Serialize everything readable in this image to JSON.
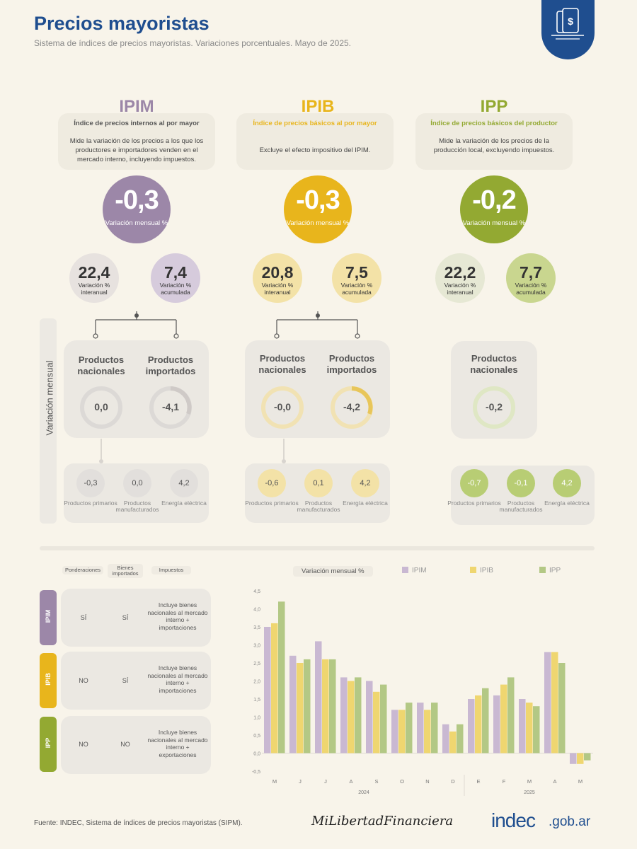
{
  "header": {
    "title": "Precios mayoristas",
    "subtitle": "Sistema de índices de precios mayoristas. Variaciones porcentuales. Mayo de 2025."
  },
  "colors": {
    "ipim": "#9c87a8",
    "ipib": "#e8b51c",
    "ipp": "#93a932",
    "brand_blue": "#1f4e8f"
  },
  "indices": [
    {
      "code": "IPIM",
      "full_name": "Índice de precios internos al por mayor",
      "description": "Mide la variación de los precios a los que los productores e importadores venden en el mercado interno, incluyendo impuestos.",
      "monthly": "-0,3",
      "monthly_label": "Variación mensual %",
      "interanual": "22,4",
      "interanual_label": "Variación % interanual",
      "acumulada": "7,4",
      "acumulada_label": "Variación % acumulada",
      "products": [
        {
          "label": "Productos nacionales",
          "value": "0,0"
        },
        {
          "label": "Productos importados",
          "value": "-4,1"
        }
      ],
      "sub": [
        {
          "label": "Productos primarios",
          "value": "-0,3"
        },
        {
          "label": "Productos manufacturados",
          "value": "0,0"
        },
        {
          "label": "Energía eléctrica",
          "value": "4,2"
        }
      ]
    },
    {
      "code": "IPIB",
      "full_name": "Índice de precios básicos al por mayor",
      "description": "Excluye el efecto impositivo del IPIM.",
      "monthly": "-0,3",
      "monthly_label": "Variación mensual %",
      "interanual": "20,8",
      "interanual_label": "Variación % interanual",
      "acumulada": "7,5",
      "acumulada_label": "Variación % acumulada",
      "products": [
        {
          "label": "Productos nacionales",
          "value": "-0,0"
        },
        {
          "label": "Productos importados",
          "value": "-4,2"
        }
      ],
      "sub": [
        {
          "label": "Productos primarios",
          "value": "-0,6"
        },
        {
          "label": "Productos manufacturados",
          "value": "0,1"
        },
        {
          "label": "Energía eléctrica",
          "value": "4,2"
        }
      ]
    },
    {
      "code": "IPP",
      "full_name": "Índice de precios básicos del productor",
      "description": "Mide la variación de los precios de la producción local, excluyendo impuestos.",
      "monthly": "-0,2",
      "monthly_label": "Variación mensual %",
      "interanual": "22,2",
      "interanual_label": "Variación % interanual",
      "acumulada": "7,7",
      "acumulada_label": "Variación % acumulada",
      "products": [
        {
          "label": "Productos nacionales",
          "value": "-0,2"
        }
      ],
      "sub": [
        {
          "label": "Productos primarios",
          "value": "-0,7"
        },
        {
          "label": "Productos manufacturados",
          "value": "-0,1"
        },
        {
          "label": "Energía eléctrica",
          "value": "4,2"
        }
      ]
    }
  ],
  "side_label": "Variación mensual",
  "table": {
    "headers": [
      "Ponderaciones",
      "Bienes importados",
      "Impuestos"
    ],
    "rows": [
      {
        "code": "IPIM",
        "ponderaciones": "SÍ",
        "importados": "SÍ",
        "desc": "Incluye bienes nacionales al mercado interno + importaciones"
      },
      {
        "code": "IPIB",
        "ponderaciones": "NO",
        "importados": "SÍ",
        "desc": "Incluye bienes nacionales al mercado interno + importaciones"
      },
      {
        "code": "IPP",
        "ponderaciones": "NO",
        "importados": "NO",
        "desc": "Incluye bienes nacionales al mercado interno + exportaciones"
      }
    ]
  },
  "chart_data": {
    "type": "bar",
    "title": "Variación mensual %",
    "categories": [
      "M",
      "J",
      "J",
      "A",
      "S",
      "O",
      "N",
      "D",
      "E",
      "F",
      "M",
      "A",
      "M"
    ],
    "year_labels": [
      {
        "label": "2024",
        "from": 0,
        "to": 7
      },
      {
        "label": "2025",
        "from": 8,
        "to": 12
      }
    ],
    "series": [
      {
        "name": "IPIM",
        "color": "#c9b8d2",
        "values": [
          3.5,
          2.7,
          3.1,
          2.1,
          2.0,
          1.2,
          1.4,
          0.8,
          1.5,
          1.6,
          1.5,
          2.8,
          -0.3
        ]
      },
      {
        "name": "IPIB",
        "color": "#efd670",
        "values": [
          3.6,
          2.5,
          2.6,
          2.0,
          1.7,
          1.2,
          1.2,
          0.6,
          1.6,
          1.9,
          1.4,
          2.8,
          -0.3
        ]
      },
      {
        "name": "IPP",
        "color": "#b3c885",
        "values": [
          4.2,
          2.6,
          2.6,
          2.1,
          1.9,
          1.4,
          1.4,
          0.8,
          1.8,
          2.1,
          1.3,
          2.5,
          -0.2
        ]
      }
    ],
    "yticks": [
      "-0,5",
      "0,0",
      "0,5",
      "1,0",
      "1,5",
      "2,0",
      "2,5",
      "3,0",
      "3,5",
      "4,0",
      "4,5"
    ],
    "ylim": [
      -0.5,
      4.5
    ],
    "legend_position": "top"
  },
  "footer": {
    "source": "Fuente: INDEC, Sistema de índices de precios mayoristas (SIPM).",
    "brand": "MiLibertadFinanciera",
    "logo_main": "indec",
    "logo_suffix": ".gob.ar"
  }
}
